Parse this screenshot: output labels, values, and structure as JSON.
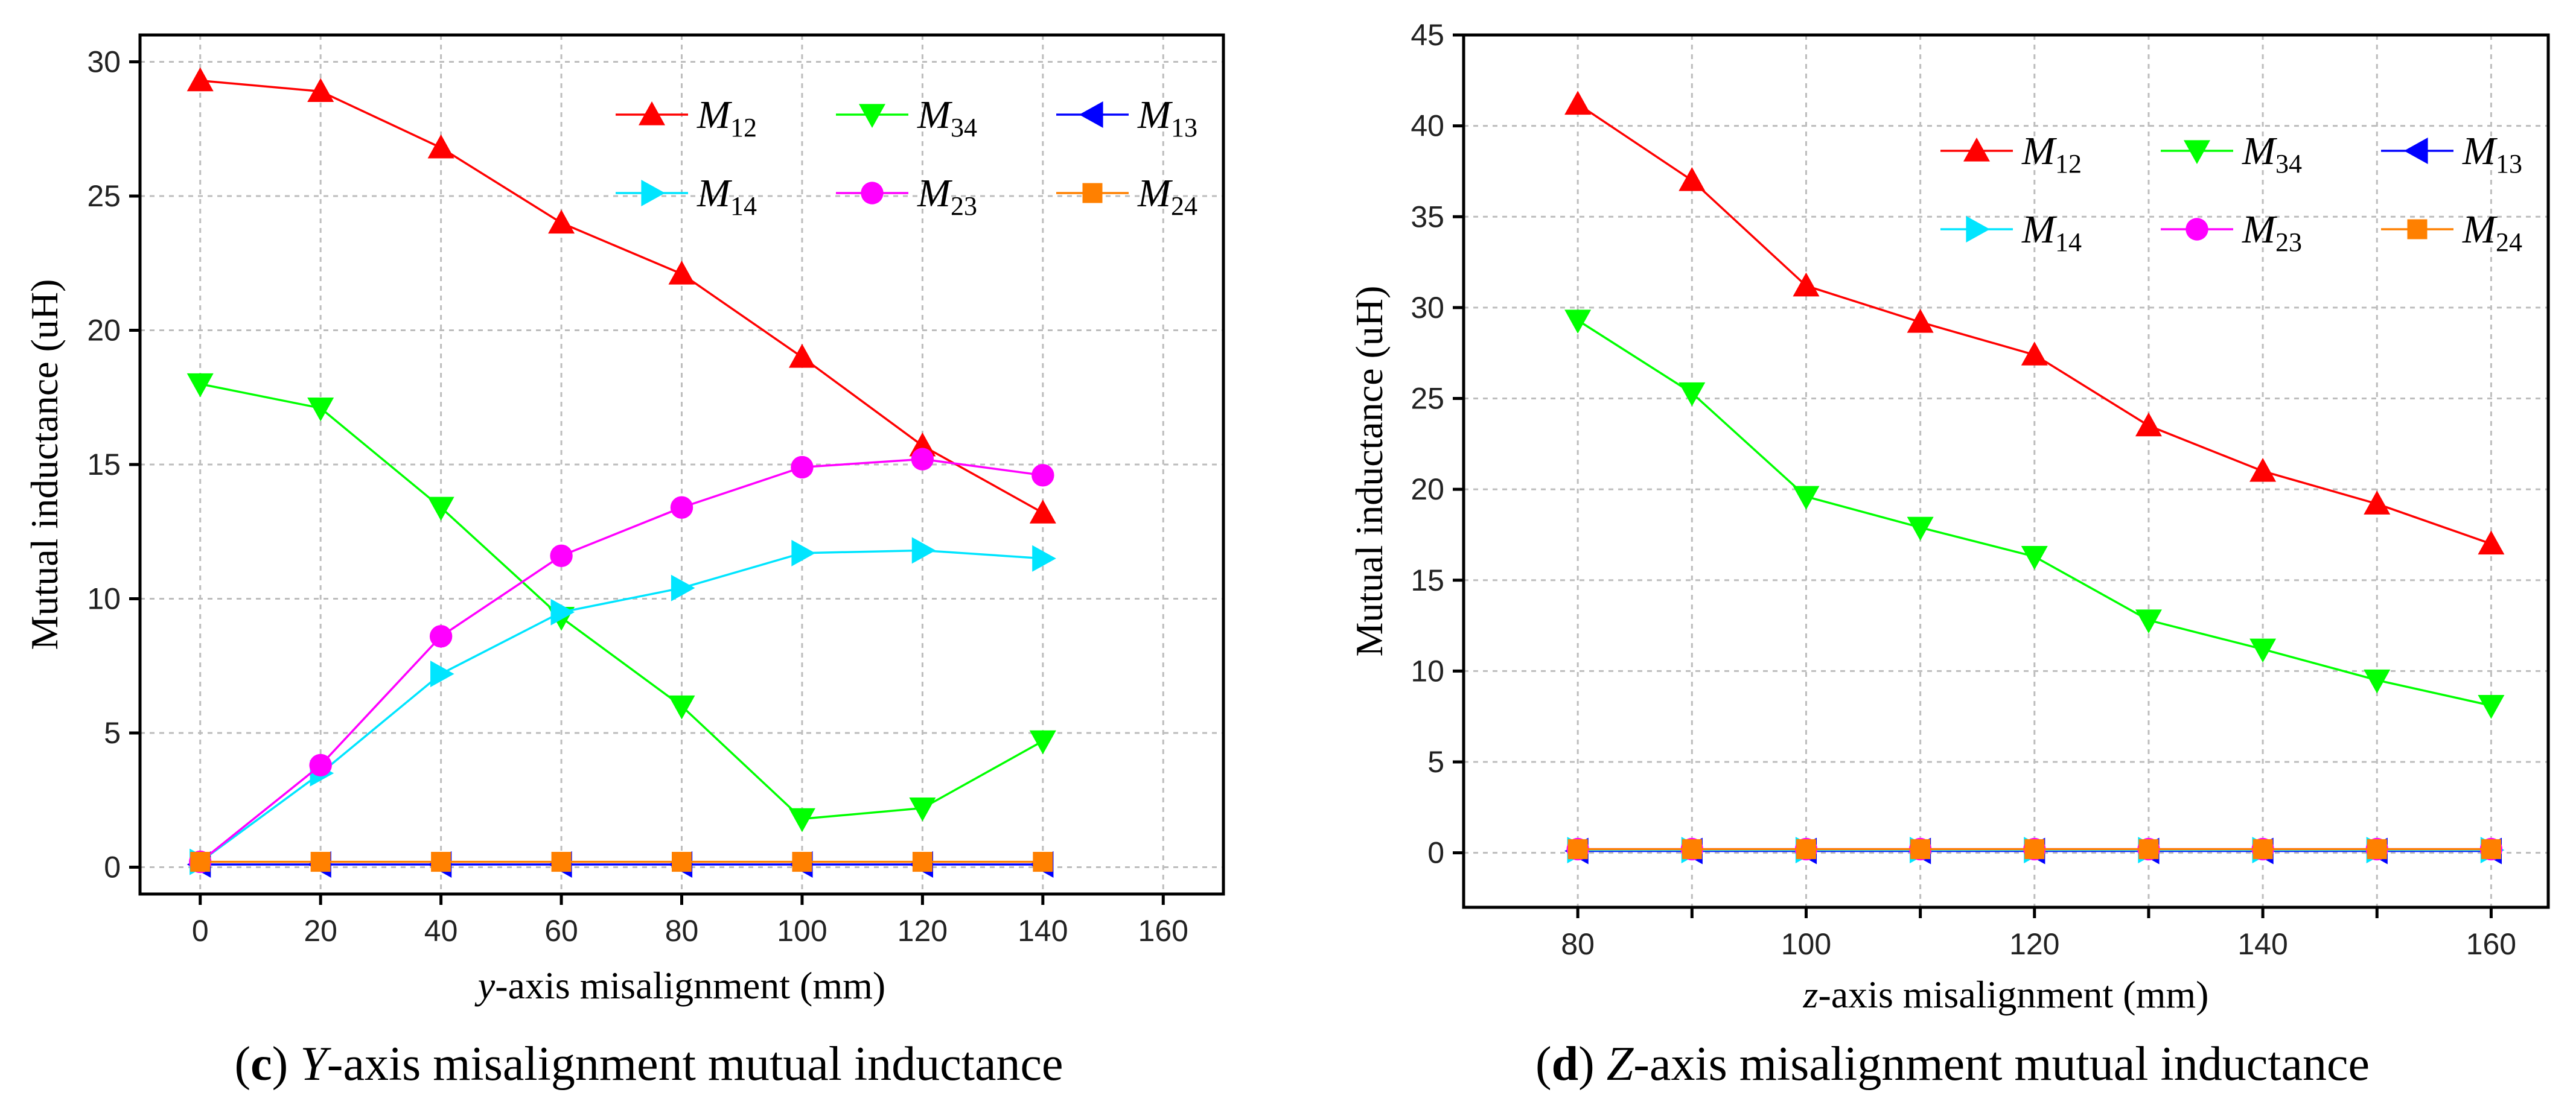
{
  "captions": [
    {
      "letter": "c",
      "axis": "Y",
      "rest": "-axis misalignment mutual inductance"
    },
    {
      "letter": "d",
      "axis": "Z",
      "rest": "-axis misalignment mutual inductance"
    }
  ],
  "chart_data": [
    {
      "type": "line",
      "xlabel_var": "y",
      "xlabel_rest": "-axis misalignment (mm)",
      "ylabel": "Mutual inductance (uH)",
      "xlim": [
        -10,
        170
      ],
      "ylim": [
        -1,
        31
      ],
      "xticks": [
        0,
        20,
        40,
        60,
        80,
        100,
        120,
        140,
        160
      ],
      "yticks": [
        0,
        5,
        10,
        15,
        20,
        25,
        30
      ],
      "grid": true,
      "legend_position": "top-right",
      "x": [
        0,
        20,
        40,
        60,
        80,
        100,
        120,
        140
      ],
      "series": [
        {
          "name": "M",
          "sub": "12",
          "color": "#ff0000",
          "marker": "triangle-up",
          "values": [
            29.3,
            28.9,
            26.8,
            24.0,
            22.1,
            19.0,
            15.7,
            13.2
          ]
        },
        {
          "name": "M",
          "sub": "34",
          "color": "#00ff00",
          "marker": "triangle-down",
          "values": [
            18.0,
            17.1,
            13.4,
            9.3,
            6.0,
            1.8,
            2.2,
            4.7
          ]
        },
        {
          "name": "M",
          "sub": "13",
          "color": "#0000ff",
          "marker": "triangle-left",
          "values": [
            0.1,
            0.1,
            0.1,
            0.1,
            0.1,
            0.1,
            0.1,
            0.1
          ]
        },
        {
          "name": "M",
          "sub": "14",
          "color": "#00e5ff",
          "marker": "triangle-right",
          "values": [
            0.2,
            3.5,
            7.2,
            9.5,
            10.4,
            11.7,
            11.8,
            11.5
          ]
        },
        {
          "name": "M",
          "sub": "23",
          "color": "#ff00ff",
          "marker": "circle",
          "values": [
            0.2,
            3.8,
            8.6,
            11.6,
            13.4,
            14.9,
            15.2,
            14.6
          ]
        },
        {
          "name": "M",
          "sub": "24",
          "color": "#ff8000",
          "marker": "square",
          "values": [
            0.2,
            0.2,
            0.2,
            0.2,
            0.2,
            0.2,
            0.2,
            0.2
          ]
        }
      ]
    },
    {
      "type": "line",
      "xlabel_var": "z",
      "xlabel_rest": "-axis misalignment (mm)",
      "ylabel": "Mutual inductance (uH)",
      "xlim": [
        70,
        165
      ],
      "ylim": [
        -3,
        45
      ],
      "xticks": [
        80,
        90,
        100,
        110,
        120,
        130,
        140,
        150,
        160
      ],
      "xtick_labels": [
        80,
        100,
        120,
        140,
        160
      ],
      "yticks": [
        0,
        5,
        10,
        15,
        20,
        25,
        30,
        35,
        40,
        45
      ],
      "grid": true,
      "legend_position": "top-right",
      "x": [
        80,
        90,
        100,
        110,
        120,
        130,
        140,
        150,
        160
      ],
      "series": [
        {
          "name": "M",
          "sub": "12",
          "color": "#ff0000",
          "marker": "triangle-up",
          "values": [
            41.2,
            37.0,
            31.2,
            29.2,
            27.4,
            23.5,
            21.0,
            19.2,
            17.0
          ]
        },
        {
          "name": "M",
          "sub": "34",
          "color": "#00ff00",
          "marker": "triangle-down",
          "values": [
            29.3,
            25.3,
            19.6,
            17.9,
            16.3,
            12.8,
            11.2,
            9.5,
            8.1
          ]
        },
        {
          "name": "M",
          "sub": "13",
          "color": "#0000ff",
          "marker": "triangle-left",
          "values": [
            0.1,
            0.1,
            0.1,
            0.1,
            0.1,
            0.1,
            0.1,
            0.1,
            0.1
          ]
        },
        {
          "name": "M",
          "sub": "14",
          "color": "#00e5ff",
          "marker": "triangle-right",
          "values": [
            0.15,
            0.15,
            0.15,
            0.15,
            0.15,
            0.15,
            0.15,
            0.15,
            0.15
          ]
        },
        {
          "name": "M",
          "sub": "23",
          "color": "#ff00ff",
          "marker": "circle",
          "values": [
            0.2,
            0.2,
            0.2,
            0.2,
            0.2,
            0.2,
            0.2,
            0.2,
            0.2
          ]
        },
        {
          "name": "M",
          "sub": "24",
          "color": "#ff8000",
          "marker": "square",
          "values": [
            0.2,
            0.2,
            0.2,
            0.2,
            0.2,
            0.2,
            0.2,
            0.2,
            0.2
          ]
        }
      ]
    }
  ]
}
